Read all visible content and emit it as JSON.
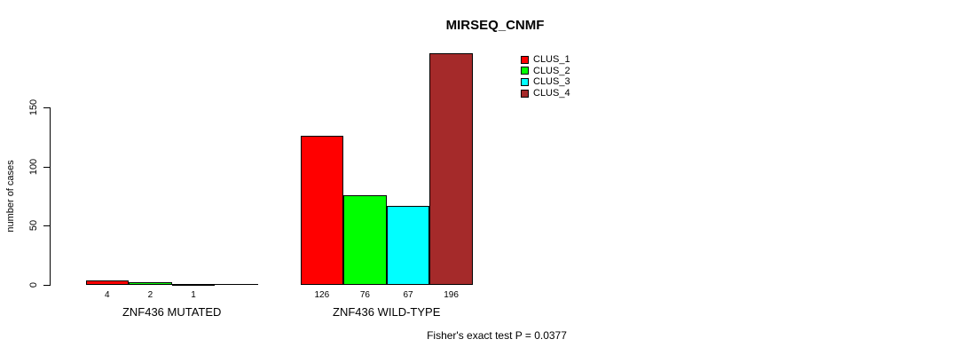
{
  "title": "MIRSEQ_CNMF",
  "footer": "Fisher's exact test P = 0.0377",
  "chart_data": {
    "type": "bar",
    "title": "MIRSEQ_CNMF",
    "xlabel": "",
    "ylabel": "number of cases",
    "yticks": [
      0,
      50,
      100,
      150
    ],
    "ylim": [
      0,
      200
    ],
    "grid": false,
    "legend_position": "top-right",
    "series": [
      {
        "name": "CLUS_1",
        "color": "#FF0000"
      },
      {
        "name": "CLUS_2",
        "color": "#00FF00"
      },
      {
        "name": "CLUS_3",
        "color": "#00FFFF"
      },
      {
        "name": "CLUS_4",
        "color": "#A52A2A"
      }
    ],
    "groups": [
      {
        "label": "ZNF436 MUTATED",
        "values": [
          4,
          2,
          1,
          0
        ]
      },
      {
        "label": "ZNF436 WILD-TYPE",
        "values": [
          126,
          76,
          67,
          196
        ]
      }
    ],
    "bar_value_labels": "shown under each bar, omitted when value is 0",
    "annotation": "Fisher's exact test P = 0.0377"
  }
}
